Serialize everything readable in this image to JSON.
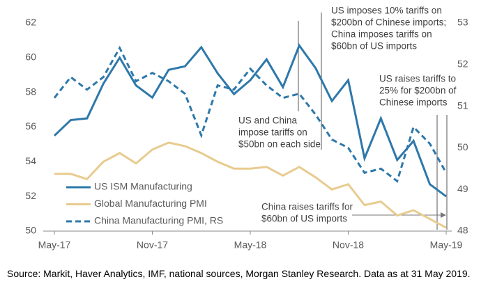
{
  "chart_data": {
    "type": "line",
    "categories": [
      "May-17",
      null,
      null,
      null,
      null,
      null,
      "Nov-17",
      null,
      null,
      null,
      null,
      null,
      "May-18",
      null,
      null,
      null,
      null,
      null,
      "Nov-18",
      null,
      null,
      null,
      null,
      null,
      "May-19"
    ],
    "series": [
      {
        "name": "US ISM Manufacturing",
        "color": "#2e78aa",
        "dashed": false,
        "axis": "y",
        "values": [
          55.5,
          56.4,
          56.5,
          58.5,
          60.0,
          58.4,
          57.7,
          59.3,
          59.5,
          60.6,
          59.1,
          57.9,
          58.7,
          59.9,
          58.3,
          60.7,
          59.4,
          57.5,
          58.7,
          54.2,
          56.5,
          54.1,
          55.2,
          52.7,
          52.0
        ]
      },
      {
        "name": "Global Manufacturing PMI",
        "color": "#e8cb8f",
        "dashed": false,
        "axis": "y",
        "values": [
          53.3,
          53.3,
          53.0,
          54.0,
          54.5,
          53.9,
          54.7,
          55.1,
          54.9,
          54.5,
          54.0,
          53.6,
          53.6,
          53.7,
          53.2,
          53.7,
          53.1,
          52.4,
          52.7,
          51.5,
          51.7,
          50.9,
          51.2,
          50.7,
          50.2
        ]
      },
      {
        "name": "China Manufacturing PMI, RS",
        "color": "#2e78aa",
        "dashed": true,
        "axis": "y2",
        "values": [
          51.2,
          51.7,
          51.4,
          51.7,
          52.4,
          51.6,
          51.8,
          51.6,
          51.3,
          50.3,
          51.5,
          51.4,
          51.9,
          51.5,
          51.2,
          51.3,
          50.8,
          50.2,
          50.0,
          49.4,
          49.5,
          49.2,
          50.5,
          50.1,
          49.4
        ]
      }
    ],
    "ylim": [
      50,
      62
    ],
    "yticks": [
      50,
      52,
      54,
      56,
      58,
      60,
      62
    ],
    "y2lim": [
      48,
      53
    ],
    "y2ticks": [
      48,
      49,
      50,
      51,
      52,
      53
    ],
    "legend": "lower left",
    "annotations": [
      [
        "US imposes 10% tariffs on",
        "$200bn of Chinese imports;",
        "China imposes tariffs on",
        "$60bn of US imports"
      ],
      [
        "US and China",
        "impose tariffs on",
        "$50bn on each side"
      ],
      [
        "US raises tariffs to",
        "25% for $200bn of",
        "Chinese imports"
      ],
      [
        "China raises tariffs  for",
        "$60bn of US imports"
      ]
    ],
    "source": "Source: Markit, Haver Analytics, IMF, national sources, Morgan Stanley Research. Data as at 31 May 2019."
  }
}
